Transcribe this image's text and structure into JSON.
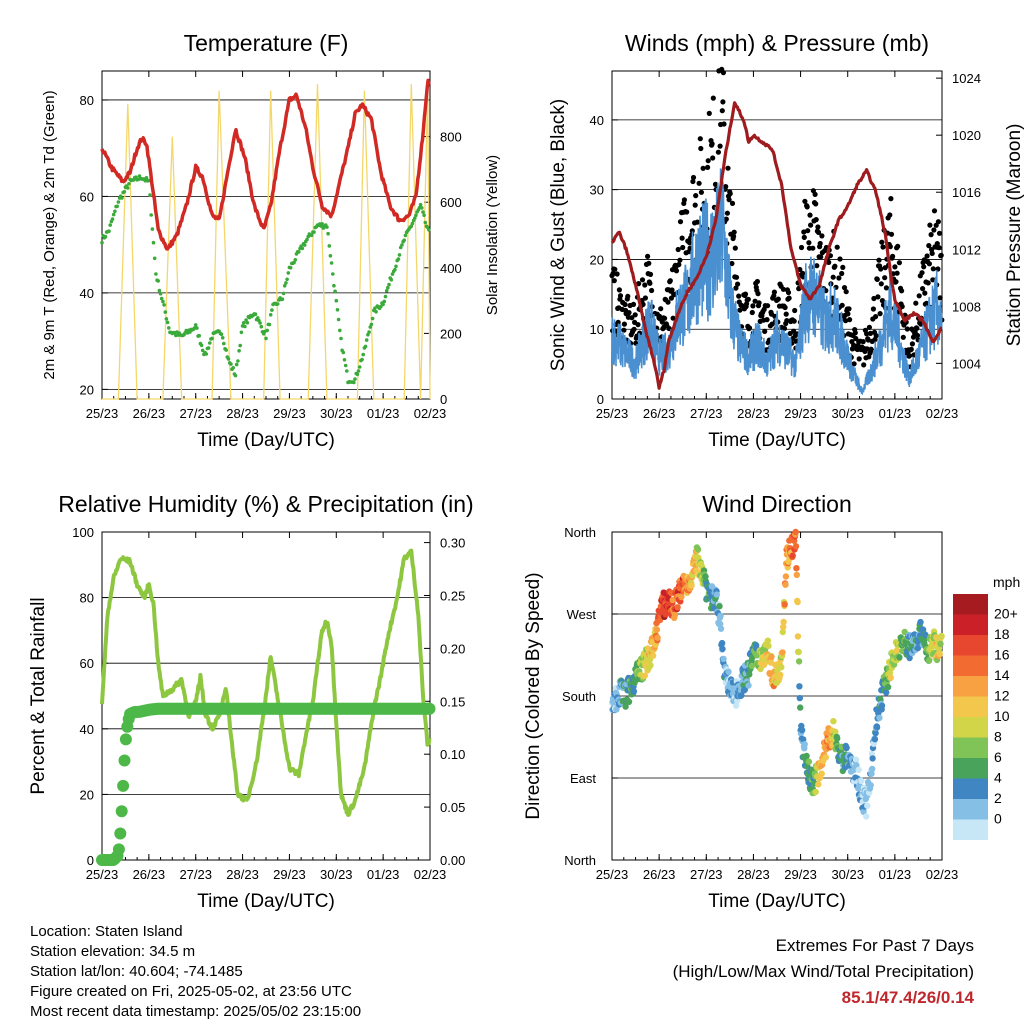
{
  "chart_data": [
    {
      "type": "line",
      "title": "Temperature (F)",
      "xlabel": "Time (Day/UTC)",
      "ylabel": "2m & 9m T (Red, Orange) & 2m Td (Green)",
      "ylabel_right": "Solar Insolation (Yellow)",
      "x_ticks": [
        "25/23",
        "26/23",
        "27/23",
        "28/23",
        "29/23",
        "30/23",
        "01/23",
        "02/23"
      ],
      "ylim": [
        18,
        86
      ],
      "y_ticks": [
        20,
        40,
        60,
        80
      ],
      "ylim_right": [
        0,
        1000
      ],
      "y_ticks_right": [
        0,
        200,
        400,
        600,
        800
      ],
      "grid": "horizontal",
      "series": [
        {
          "name": "2m T",
          "color": "#d12a24",
          "x": [
            0,
            0.2,
            0.45,
            0.6,
            0.75,
            0.85,
            0.95,
            1.05,
            1.2,
            1.4,
            1.6,
            1.8,
            2.0,
            2.15,
            2.35,
            2.5,
            2.7,
            2.85,
            3.05,
            3.25,
            3.45,
            3.6,
            3.8,
            4.0,
            4.15,
            4.35,
            4.5,
            4.7,
            4.9,
            5.05,
            5.25,
            5.4,
            5.55,
            5.75,
            5.95,
            6.15,
            6.35,
            6.55,
            6.7,
            6.85,
            6.95,
            7.0
          ],
          "y": [
            70,
            66,
            63,
            65,
            70,
            72,
            71,
            64,
            53,
            49,
            52,
            58,
            66,
            64,
            56,
            55,
            66,
            74,
            68,
            58,
            53,
            58,
            70,
            80,
            81,
            74,
            66,
            58,
            56,
            62,
            70,
            77,
            79,
            76,
            65,
            58,
            55,
            56,
            60,
            73,
            84,
            83
          ]
        },
        {
          "name": "2m Td",
          "color": "#3aaa3a",
          "x": [
            0,
            0.15,
            0.35,
            0.6,
            0.85,
            1.0,
            1.15,
            1.3,
            1.45,
            1.7,
            2.0,
            2.2,
            2.35,
            2.55,
            2.7,
            2.85,
            3.0,
            3.25,
            3.5,
            3.65,
            3.85,
            4.0,
            4.3,
            4.6,
            4.8,
            4.95,
            5.1,
            5.25,
            5.4,
            5.6,
            5.8,
            6.0,
            6.2,
            6.45,
            6.65,
            6.8,
            6.95,
            7.0
          ],
          "y": [
            51,
            53,
            59,
            63,
            64,
            63,
            44,
            38,
            32,
            31,
            33,
            27,
            31,
            32,
            26,
            23,
            33,
            36,
            31,
            37,
            39,
            45,
            50,
            54,
            54,
            42,
            30,
            22,
            22,
            28,
            36,
            38,
            44,
            51,
            55,
            58,
            53,
            52
          ]
        },
        {
          "name": "Solar Insolation",
          "color": "#f4d76a",
          "axis": "right",
          "x": [
            0,
            0.35,
            0.55,
            0.75,
            0.95,
            1.15,
            1.3,
            1.5,
            1.7,
            1.95,
            2.15,
            2.35,
            2.5,
            2.75,
            2.95,
            3.25,
            3.45,
            3.6,
            3.8,
            3.95,
            4.25,
            4.4,
            4.6,
            4.8,
            4.95,
            5.25,
            5.45,
            5.6,
            5.8,
            5.95,
            6.25,
            6.45,
            6.6,
            6.8,
            6.95,
            7.0
          ],
          "y": [
            0,
            0,
            900,
            0,
            0,
            0,
            0,
            800,
            0,
            0,
            0,
            0,
            940,
            0,
            0,
            0,
            0,
            940,
            0,
            0,
            0,
            0,
            960,
            0,
            0,
            0,
            0,
            940,
            0,
            0,
            0,
            0,
            960,
            0,
            950,
            0
          ]
        }
      ]
    },
    {
      "type": "scatter",
      "title": "Winds (mph) & Pressure (mb)",
      "xlabel": "Time (Day/UTC)",
      "ylabel": "Sonic Wind & Gust (Blue, Black)",
      "ylabel_right": "Station Pressure (Maroon)",
      "x_ticks": [
        "25/23",
        "26/23",
        "27/23",
        "28/23",
        "29/23",
        "30/23",
        "01/23",
        "02/23"
      ],
      "ylim": [
        0,
        47
      ],
      "y_ticks": [
        0,
        10,
        20,
        30,
        40
      ],
      "ylim_right": [
        1001.5,
        1024.5
      ],
      "y_ticks_right": [
        1004,
        1008,
        1012,
        1016,
        1020,
        1024
      ],
      "grid": "horizontal",
      "series": [
        {
          "name": "Sonic Wind",
          "color": "#4a90d0",
          "x": [
            0,
            0.25,
            0.5,
            0.8,
            1.0,
            1.2,
            1.4,
            1.6,
            1.8,
            2.0,
            2.2,
            2.35,
            2.5,
            2.7,
            2.9,
            3.1,
            3.3,
            3.5,
            3.7,
            3.9,
            4.1,
            4.3,
            4.5,
            4.7,
            4.9,
            5.1,
            5.3,
            5.5,
            5.7,
            5.9,
            6.1,
            6.3,
            6.5,
            6.7,
            6.9,
            7.0
          ],
          "y": [
            9,
            7,
            5,
            11,
            6,
            7,
            12,
            14,
            19,
            20,
            21,
            24,
            14,
            8,
            6,
            8,
            5,
            9,
            7,
            5,
            14,
            15,
            11,
            12,
            8,
            4,
            1,
            4,
            8,
            13,
            8,
            3,
            6,
            10,
            13,
            9
          ]
        },
        {
          "name": "Gust",
          "color": "#000000",
          "x": [
            0,
            0.2,
            0.45,
            0.75,
            1.0,
            1.2,
            1.4,
            1.6,
            1.8,
            2.0,
            2.2,
            2.35,
            2.5,
            2.7,
            2.9,
            3.1,
            3.3,
            3.5,
            3.7,
            3.9,
            4.1,
            4.3,
            4.5,
            4.7,
            4.9,
            5.1,
            5.3,
            5.5,
            5.7,
            5.9,
            6.1,
            6.3,
            6.5,
            6.7,
            6.9,
            7.0
          ],
          "y": [
            15,
            12,
            10,
            16,
            10,
            12,
            18,
            24,
            27,
            30,
            34,
            37,
            24,
            14,
            11,
            13,
            10,
            13,
            12,
            10,
            22,
            23,
            17,
            18,
            14,
            8,
            6,
            10,
            16,
            22,
            16,
            6,
            12,
            18,
            21,
            16
          ]
        },
        {
          "name": "Station Pressure",
          "color": "#9e1b1e",
          "axis": "right",
          "x": [
            0,
            0.15,
            0.3,
            0.5,
            0.7,
            0.9,
            1.0,
            1.1,
            1.2,
            1.4,
            1.6,
            1.8,
            2.0,
            2.2,
            2.4,
            2.6,
            2.8,
            2.9,
            3.0,
            3.2,
            3.4,
            3.6,
            3.8,
            4.0,
            4.2,
            4.4,
            4.6,
            4.8,
            5.0,
            5.2,
            5.4,
            5.6,
            5.8,
            5.9,
            6.0,
            6.2,
            6.4,
            6.6,
            6.8,
            7.0
          ],
          "y": [
            1012.5,
            1013.2,
            1012.0,
            1009.5,
            1006.5,
            1004.0,
            1002.3,
            1003.5,
            1005.5,
            1007.5,
            1009.0,
            1010.0,
            1011.5,
            1014.0,
            1018.5,
            1022.3,
            1021.0,
            1019.5,
            1020.0,
            1019.5,
            1019.0,
            1016.5,
            1012.0,
            1009.5,
            1008.5,
            1009.5,
            1012.0,
            1014.0,
            1015.0,
            1016.5,
            1017.5,
            1016.0,
            1013.0,
            1010.5,
            1008.5,
            1007.0,
            1007.5,
            1007.0,
            1005.5,
            1006.5
          ]
        }
      ]
    },
    {
      "type": "line",
      "title": "Relative Humidity (%) & Precipitation (in)",
      "xlabel": "Time (Day/UTC)",
      "ylabel": "Percent & Total Rainfall",
      "x_ticks": [
        "25/23",
        "26/23",
        "27/23",
        "28/23",
        "29/23",
        "30/23",
        "01/23",
        "02/23"
      ],
      "ylim": [
        0,
        100
      ],
      "y_ticks": [
        0,
        20,
        40,
        60,
        80,
        100
      ],
      "ylim_right": [
        0,
        0.31
      ],
      "y_ticks_right": [
        "0.00",
        "0.05",
        "0.10",
        "0.15",
        "0.20",
        "0.25",
        "0.30"
      ],
      "grid": "horizontal",
      "series": [
        {
          "name": "Relative Humidity",
          "color": "#8dc63f",
          "x": [
            0,
            0.12,
            0.25,
            0.4,
            0.6,
            0.75,
            0.9,
            1.0,
            1.1,
            1.2,
            1.3,
            1.5,
            1.7,
            1.85,
            2.0,
            2.1,
            2.2,
            2.35,
            2.5,
            2.65,
            2.8,
            2.9,
            3.1,
            3.3,
            3.45,
            3.6,
            3.8,
            4.0,
            4.2,
            4.35,
            4.5,
            4.6,
            4.7,
            4.8,
            4.9,
            5.0,
            5.1,
            5.25,
            5.4,
            5.6,
            5.8,
            5.95,
            6.1,
            6.3,
            6.45,
            6.6,
            6.75,
            6.85,
            6.95,
            7.0
          ],
          "y": [
            48,
            75,
            86,
            92,
            91,
            84,
            80,
            84,
            78,
            60,
            50,
            52,
            55,
            44,
            48,
            56,
            45,
            40,
            44,
            52,
            32,
            20,
            18,
            30,
            45,
            62,
            45,
            28,
            26,
            38,
            48,
            60,
            70,
            73,
            66,
            42,
            20,
            14,
            18,
            28,
            46,
            56,
            68,
            80,
            92,
            94,
            75,
            50,
            35,
            37
          ]
        },
        {
          "name": "Total Precipitation",
          "color": "#4db848",
          "axis": "right",
          "x": [
            0,
            0.25,
            0.35,
            0.4,
            0.45,
            0.5,
            0.55,
            0.6,
            0.7,
            0.8,
            1.0,
            1.2,
            1.5,
            2.0,
            3.0,
            4.0,
            5.0,
            6.0,
            7.0
          ],
          "y": [
            0,
            0,
            0.005,
            0.03,
            0.07,
            0.11,
            0.13,
            0.138,
            0.14,
            0.14,
            0.142,
            0.143,
            0.143,
            0.143,
            0.143,
            0.143,
            0.143,
            0.143,
            0.143
          ]
        }
      ]
    },
    {
      "type": "scatter",
      "title": "Wind Direction",
      "xlabel": "Time (Day/UTC)",
      "ylabel": "Direction (Colored By Speed)",
      "x_ticks": [
        "25/23",
        "26/23",
        "27/23",
        "28/23",
        "29/23",
        "30/23",
        "01/23",
        "02/23"
      ],
      "y_ticks": [
        "North",
        "East",
        "South",
        "West",
        "North"
      ],
      "ylim": [
        0,
        360
      ],
      "grid": "horizontal",
      "legend": {
        "unit": "mph",
        "labels": [
          "20+",
          "18",
          "16",
          "14",
          "12",
          "10",
          "8",
          "6",
          "4",
          "2",
          "0"
        ],
        "colors": [
          "#a51b1f",
          "#cb2027",
          "#e8472f",
          "#f26b30",
          "#f8a142",
          "#f2c74c",
          "#d2d548",
          "#80c356",
          "#49a35b",
          "#3f86c3",
          "#85bfe6",
          "#c8e7f6"
        ]
      },
      "series": [
        {
          "name": "Direction",
          "x": [
            0,
            0.1,
            0.2,
            0.3,
            0.4,
            0.5,
            0.6,
            0.7,
            0.8,
            0.9,
            1.0,
            1.1,
            1.2,
            1.3,
            1.4,
            1.5,
            1.6,
            1.7,
            1.8,
            1.9,
            2.0,
            2.1,
            2.2,
            2.3,
            2.4,
            2.5,
            2.6,
            2.7,
            2.8,
            2.9,
            3.0,
            3.1,
            3.2,
            3.3,
            3.4,
            3.5,
            3.6,
            3.7,
            3.8,
            3.9,
            4.0,
            4.1,
            4.2,
            4.3,
            4.4,
            4.5,
            4.6,
            4.7,
            4.8,
            4.9,
            5.0,
            5.1,
            5.2,
            5.3,
            5.4,
            5.5,
            5.6,
            5.7,
            5.8,
            5.9,
            6.0,
            6.1,
            6.2,
            6.3,
            6.4,
            6.5,
            6.6,
            6.7,
            6.8,
            6.9,
            7.0
          ],
          "y": [
            170,
            178,
            185,
            180,
            192,
            200,
            210,
            215,
            225,
            235,
            268,
            280,
            285,
            275,
            290,
            300,
            300,
            315,
            330,
            320,
            300,
            290,
            285,
            260,
            200,
            190,
            180,
            190,
            200,
            205,
            230,
            220,
            225,
            230,
            205,
            200,
            225,
            330,
            345,
            350,
            140,
            110,
            90,
            85,
            100,
            115,
            135,
            140,
            120,
            110,
            115,
            100,
            95,
            70,
            60,
            100,
            150,
            175,
            195,
            210,
            225,
            235,
            238,
            235,
            240,
            245,
            250,
            225,
            240,
            230,
            235
          ],
          "speed": [
            2,
            3,
            4,
            4,
            5,
            6,
            8,
            10,
            12,
            12,
            17,
            19,
            18,
            16,
            17,
            17,
            14,
            12,
            11,
            10,
            6,
            4,
            4,
            3,
            3,
            2,
            2,
            3,
            3,
            4,
            5,
            7,
            10,
            12,
            13,
            12,
            11,
            14,
            15,
            16,
            3,
            4,
            5,
            7,
            12,
            14,
            15,
            10,
            6,
            4,
            4,
            3,
            2,
            2,
            1,
            2,
            3,
            4,
            7,
            9,
            10,
            8,
            6,
            5,
            4,
            4,
            5,
            7,
            9,
            11,
            10
          ]
        }
      ]
    }
  ],
  "info": {
    "location": "Location: Staten Island",
    "elevation": "Station elevation: 34.5 m",
    "latlon": "Station lat/lon: 40.604; -74.1485",
    "created": "Figure created on Fri, 2025-05-02, at 23:56 UTC",
    "recent": "Most recent data timestamp: 2025/05/02 23:15:00"
  },
  "extremes": {
    "title": "Extremes For Past 7 Days",
    "subtitle": "(High/Low/Max Wind/Total Precipitation)",
    "values": "85.1/47.4/26/0.14",
    "value_color": "#c0272d"
  }
}
